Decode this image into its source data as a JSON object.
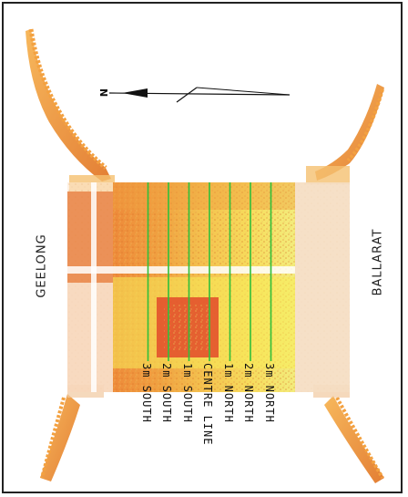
{
  "labels": {
    "west": "GEELONG",
    "east": "BALLARAT",
    "north_arrow": "N"
  },
  "offset_lines": [
    {
      "label": "3m SOUTH",
      "offset_m": -3
    },
    {
      "label": "2m SOUTH",
      "offset_m": -2
    },
    {
      "label": "1m SOUTH",
      "offset_m": -1
    },
    {
      "label": "CENTRE LINE",
      "offset_m": 0
    },
    {
      "label": "1m NORTH",
      "offset_m": 1
    },
    {
      "label": "2m NORTH",
      "offset_m": 2
    },
    {
      "label": "3m NORTH",
      "offset_m": 3
    }
  ],
  "colors": {
    "offset_line": "#2fbf3a",
    "heat_low": "#f7f08a",
    "heat_mid": "#f5b640",
    "heat_high": "#e5611f",
    "heat_peak": "#d6341c"
  }
}
